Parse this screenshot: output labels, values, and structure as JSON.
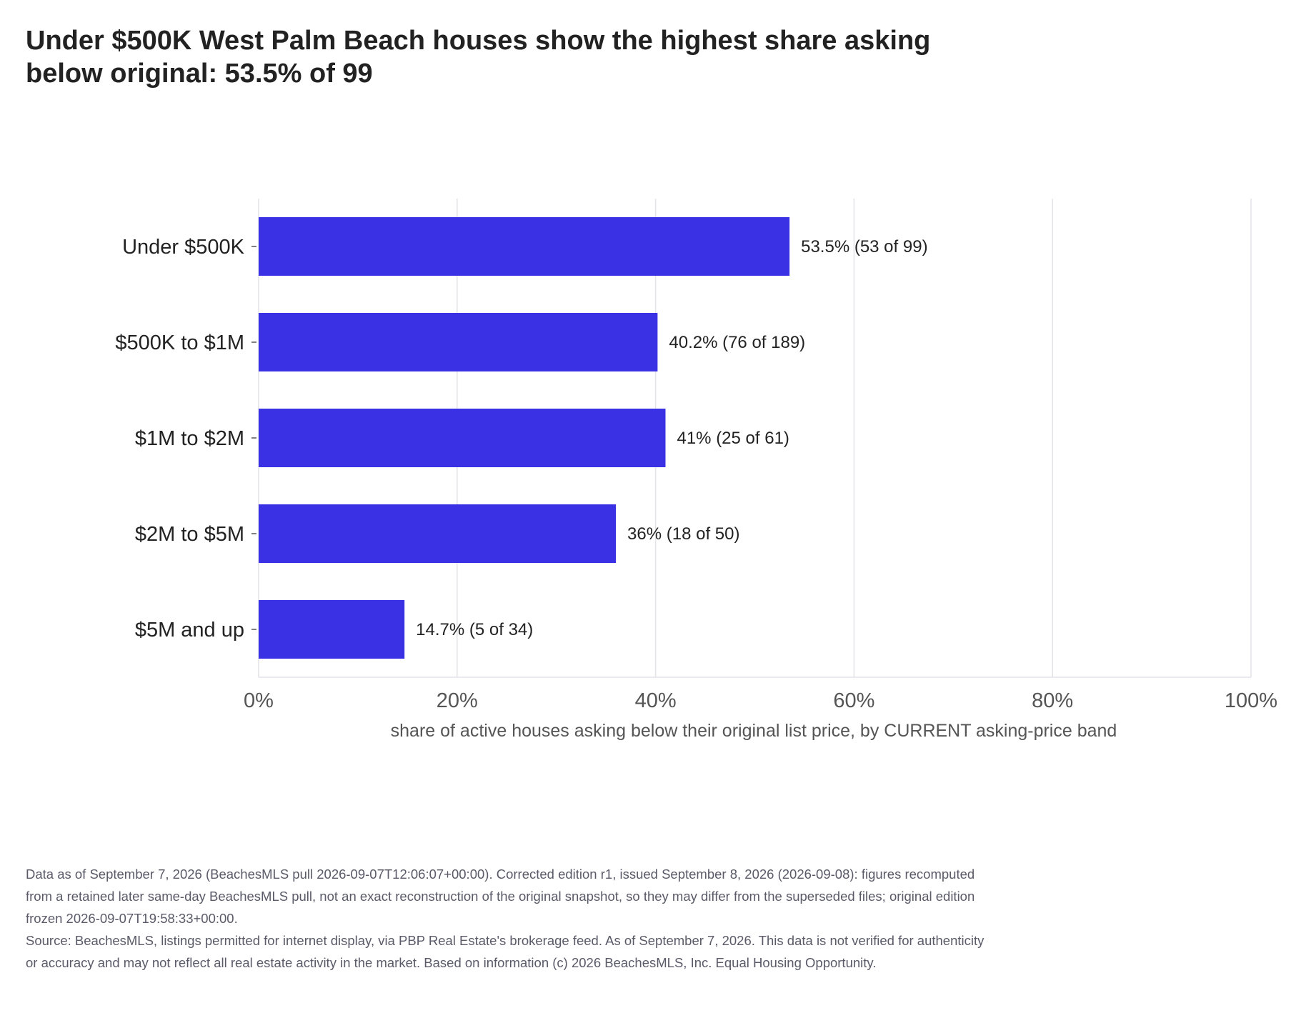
{
  "title": "Under $500K West Palm Beach houses show the highest share asking below original: 53.5% of 99",
  "colors": {
    "bar": "#3a31e4",
    "grid": "#e3e3e8",
    "axis_text": "#555555",
    "category_text": "#222222",
    "footnote_text": "#5a5a68"
  },
  "chart_data": {
    "type": "bar",
    "orientation": "horizontal",
    "categories": [
      "Under $500K",
      "$500K to $1M",
      "$1M to $2M",
      "$2M to $5M",
      "$5M and up"
    ],
    "values": [
      53.5,
      40.2,
      41,
      36,
      14.7
    ],
    "data_labels": [
      "53.5%  (53 of 99)",
      "40.2%  (76 of 189)",
      "41%  (25 of 61)",
      "36%  (18 of 50)",
      "14.7%  (5 of 34)"
    ],
    "xlim": [
      0,
      100
    ],
    "x_ticks": [
      0,
      20,
      40,
      60,
      80,
      100
    ],
    "x_tick_labels": [
      "0%",
      "20%",
      "40%",
      "60%",
      "80%",
      "100%"
    ],
    "xlabel": "share of active houses asking below their original list price, by CURRENT asking-price band",
    "grid": "vertical"
  },
  "footnote": {
    "data_note": "Data as of September 7, 2026 (BeachesMLS pull 2026-09-07T12:06:07+00:00). Corrected edition r1, issued September 8, 2026 (2026-09-08): figures recomputed from a retained later same-day BeachesMLS pull, not an exact reconstruction of the original snapshot, so they may differ from the superseded files; original edition frozen 2026-09-07T19:58:33+00:00.",
    "source": "Source: BeachesMLS, listings permitted for internet display, via PBP Real Estate's brokerage feed. As of September 7, 2026. This data is not verified for authenticity or accuracy and may not reflect all real estate activity in the market. Based on information (c) 2026 BeachesMLS, Inc. Equal Housing Opportunity."
  }
}
